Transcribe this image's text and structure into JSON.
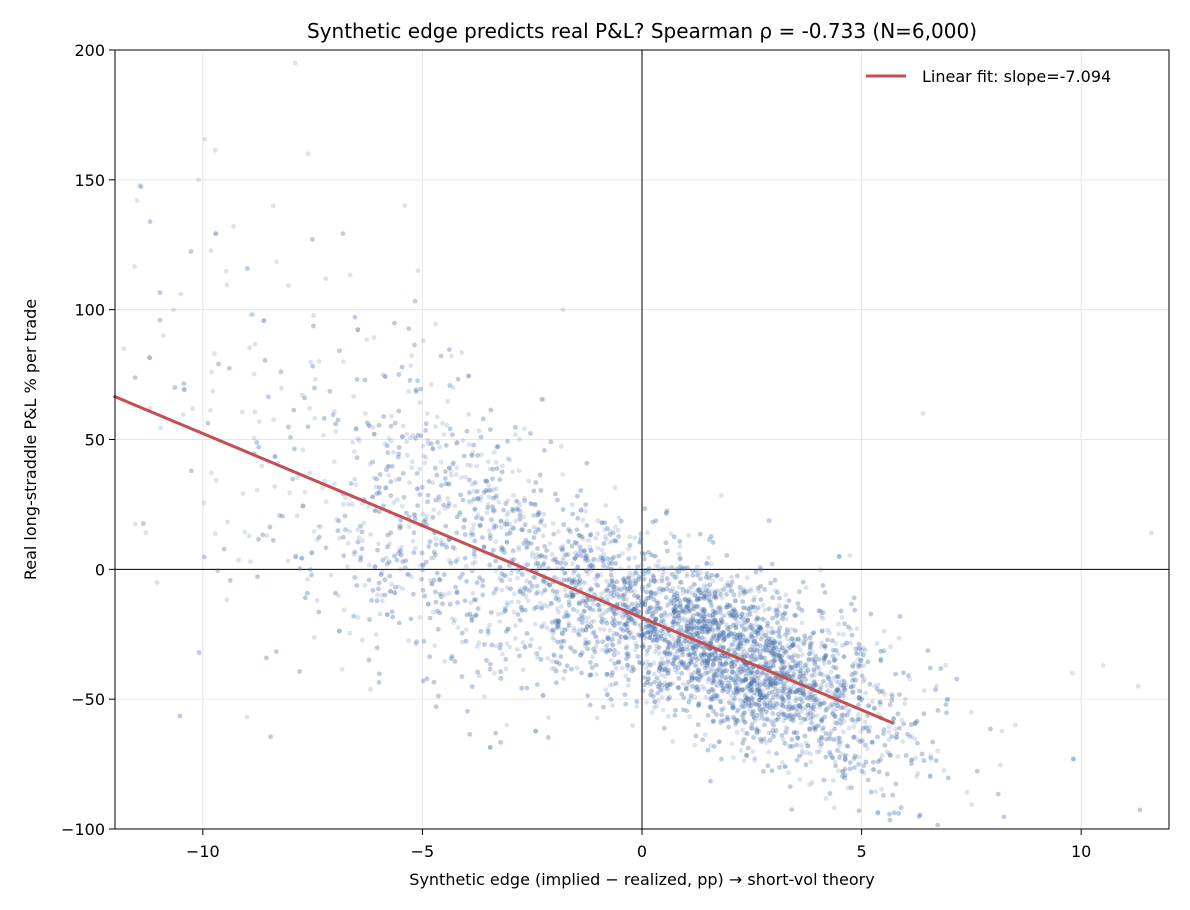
{
  "chart_data": {
    "type": "scatter",
    "title": "Synthetic edge predicts real P&L? Spearman ρ = -0.733 (N=6,000)",
    "xlabel": "Synthetic edge (implied − realized, pp) →  short-vol theory",
    "ylabel": "Real long-straddle P&L % per trade",
    "xlim": [
      -12,
      12
    ],
    "ylim": [
      -100,
      200
    ],
    "x_ticks": [
      -10,
      -5,
      0,
      5,
      10
    ],
    "x_tick_labels": [
      "−10",
      "−5",
      "0",
      "5",
      "10"
    ],
    "y_ticks": [
      -100,
      -50,
      0,
      50,
      100,
      150,
      200
    ],
    "y_tick_labels": [
      "−100",
      "−50",
      "0",
      "50",
      "100",
      "150",
      "200"
    ],
    "grid": true,
    "reference_lines": {
      "x": 0,
      "y": 0
    },
    "legend_position": "top-right",
    "series": [
      {
        "name": "",
        "kind": "scatter",
        "color": "#4c72b0",
        "alpha": 0.2,
        "n": 6000,
        "sample_points": [
          [
            -11.8,
            85
          ],
          [
            -11.5,
            142
          ],
          [
            -11.2,
            62
          ],
          [
            -10.9,
            90
          ],
          [
            -10.5,
            106
          ],
          [
            -10.1,
            150
          ],
          [
            -9.8,
            76
          ],
          [
            -9.3,
            132
          ],
          [
            -8.9,
            98
          ],
          [
            -8.4,
            140
          ],
          [
            -7.9,
            195
          ],
          [
            -7.6,
            160
          ],
          [
            -7.2,
            112
          ],
          [
            -6.8,
            80
          ],
          [
            -6.3,
            60
          ],
          [
            -5.9,
            75
          ],
          [
            -5.4,
            140
          ],
          [
            -5.1,
            115
          ],
          [
            -4.7,
            55
          ],
          [
            -4.3,
            70
          ],
          [
            -3.9,
            40
          ],
          [
            -3.5,
            25
          ],
          [
            -3.0,
            15
          ],
          [
            -2.5,
            5
          ],
          [
            -2.1,
            10
          ],
          [
            -1.6,
            -5
          ],
          [
            -1.2,
            -10
          ],
          [
            -0.7,
            -15
          ],
          [
            -0.3,
            -20
          ],
          [
            0.2,
            -25
          ],
          [
            0.6,
            -30
          ],
          [
            1.1,
            -35
          ],
          [
            1.5,
            -40
          ],
          [
            2.0,
            -45
          ],
          [
            2.5,
            -50
          ],
          [
            2.9,
            -42
          ],
          [
            3.4,
            -38
          ],
          [
            3.8,
            -48
          ],
          [
            4.3,
            -52
          ],
          [
            4.7,
            -55
          ],
          [
            5.3,
            -45
          ],
          [
            6.0,
            -50
          ],
          [
            6.4,
            60
          ],
          [
            7.5,
            -55
          ],
          [
            8.5,
            -60
          ],
          [
            9.8,
            -40
          ],
          [
            10.5,
            -37
          ],
          [
            11.3,
            -45
          ],
          [
            11.6,
            14
          ],
          [
            -1.8,
            100
          ]
        ]
      },
      {
        "name": "Linear fit: slope=-7.094",
        "kind": "line",
        "color": "#c44e52",
        "x": [
          -12,
          5.7
        ],
        "y": [
          66.5,
          -59.1
        ]
      }
    ]
  }
}
